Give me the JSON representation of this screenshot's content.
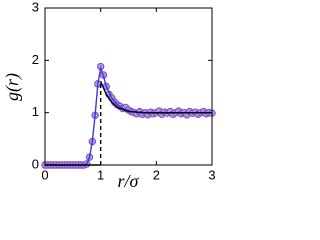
{
  "chart_data": {
    "type": "scatter",
    "x_label": "r/σ",
    "y_label": "g(r)",
    "xlim": [
      0,
      3
    ],
    "ylim": [
      0,
      3
    ],
    "xticks": [
      0,
      1,
      2,
      3
    ],
    "yticks": [
      0,
      1,
      2,
      3
    ],
    "series": [
      {
        "type": "scatter",
        "color": "#b48fe6",
        "x": [
          0,
          0.05,
          0.1,
          0.15,
          0.2,
          0.25,
          0.3,
          0.35,
          0.4,
          0.45,
          0.5,
          0.55,
          0.6,
          0.65,
          0.7,
          0.75,
          0.8,
          0.85,
          0.9,
          0.95,
          1.0,
          1.05,
          1.1,
          1.15,
          1.2,
          1.25,
          1.3,
          1.35,
          1.4,
          1.45,
          1.5,
          1.55,
          1.6,
          1.65,
          1.7,
          1.75,
          1.8,
          1.85,
          1.9,
          1.95,
          2.0,
          2.05,
          2.1,
          2.15,
          2.2,
          2.25,
          2.3,
          2.35,
          2.4,
          2.45,
          2.5,
          2.55,
          2.6,
          2.65,
          2.7,
          2.75,
          2.8,
          2.85,
          2.9,
          2.95,
          3.0
        ],
        "values": [
          0,
          0,
          0,
          0,
          0,
          0,
          0,
          0,
          0,
          0,
          0,
          0,
          0,
          0,
          0,
          0.02,
          0.15,
          0.45,
          0.95,
          1.55,
          1.88,
          1.72,
          1.5,
          1.35,
          1.28,
          1.2,
          1.15,
          1.12,
          1.08,
          1.1,
          1.05,
          1.02,
          1.0,
          0.98,
          1.02,
          0.97,
          1.0,
          0.96,
          1.01,
          0.98,
          1.0,
          1.03,
          0.97,
          1.01,
          0.99,
          1.02,
          0.97,
          1.0,
          1.03,
          0.98,
          1.0,
          0.96,
          1.02,
          0.99,
          1.01,
          0.97,
          1.0,
          1.02,
          0.98,
          1.0,
          0.99
        ]
      },
      {
        "type": "line",
        "color": "#3a3ad8",
        "x": [
          0,
          0.7,
          0.75,
          0.8,
          0.85,
          0.9,
          0.95,
          1.0,
          1.05,
          1.1,
          1.2,
          1.3,
          1.4,
          1.5,
          1.7,
          2.0,
          3.0
        ],
        "values": [
          0,
          0,
          0.02,
          0.15,
          0.45,
          0.95,
          1.55,
          1.85,
          1.7,
          1.5,
          1.28,
          1.15,
          1.08,
          1.04,
          1.0,
          0.99,
          1.0
        ]
      },
      {
        "type": "line",
        "color": "#000000",
        "dashed": true,
        "x": [
          1,
          1
        ],
        "values": [
          0,
          1.6
        ]
      },
      {
        "type": "line",
        "color": "#000000",
        "x": [
          0,
          1,
          1,
          1,
          1.1,
          1.2,
          1.3,
          1.5,
          1.8,
          3
        ],
        "values": [
          0,
          0,
          null,
          1.6,
          1.35,
          1.2,
          1.1,
          1.02,
          1.0,
          1.0
        ]
      }
    ]
  }
}
